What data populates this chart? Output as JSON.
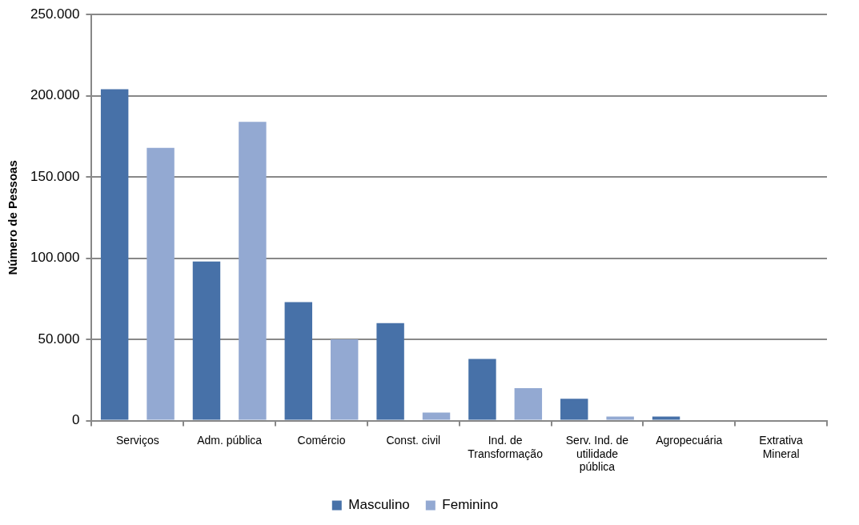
{
  "chart_data": {
    "type": "bar",
    "ylabel": "Número de Pessoas",
    "categories": [
      "Serviços",
      "Adm. pública",
      "Comércio",
      "Const. civil",
      "Ind. de Transformação",
      "Serv. Ind. de utilidade pública",
      "Agropecuária",
      "Extrativa Mineral"
    ],
    "series": [
      {
        "name": "Masculino",
        "color": "#4771a8",
        "values": [
          204000,
          98000,
          73000,
          60000,
          38000,
          13500,
          2500,
          0
        ]
      },
      {
        "name": "Feminino",
        "color": "#93a9d2",
        "values": [
          168000,
          184000,
          50000,
          5000,
          20000,
          2500,
          0,
          0
        ]
      }
    ],
    "ylim": [
      0,
      250000
    ],
    "yticks": [
      0,
      {
        "value": 50000,
        "label": "50.000"
      },
      {
        "value": 100000,
        "label": "100.000"
      },
      {
        "value": 150000,
        "label": "150.000"
      },
      {
        "value": 200000,
        "label": "200.000"
      },
      {
        "value": 250000,
        "label": "250.000"
      }
    ],
    "grid": "y",
    "legend": "bottom"
  }
}
